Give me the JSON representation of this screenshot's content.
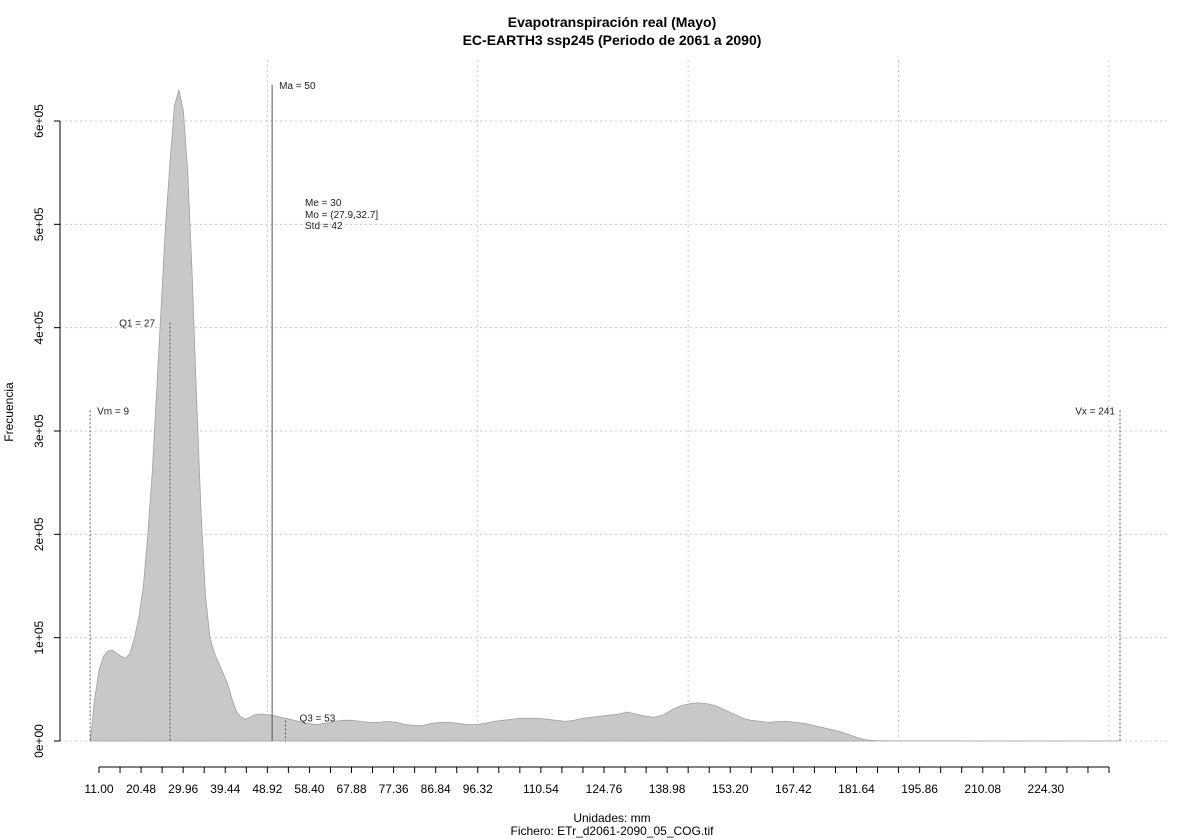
{
  "chart_data": {
    "type": "area",
    "title": "Evapotranspiración real (Mayo)",
    "subtitle": "EC-EARTH3 ssp245 (Periodo de 2061 a 2090)",
    "xlabel": "Unidades: mm",
    "caption": "Fichero: ETr_d2061-2090_05_COG.tif",
    "ylabel": "Frecuencia",
    "xlim": [
      11.0,
      238.52
    ],
    "ylim": [
      0,
      600000
    ],
    "grid": true,
    "fill_color": "#c8c8c8",
    "line_color": "#a0a0a0",
    "x_tick_values": [
      11.0,
      15.74,
      20.48,
      25.22,
      29.96,
      34.7,
      39.44,
      44.18,
      48.92,
      53.66,
      58.4,
      63.14,
      67.88,
      72.62,
      77.36,
      82.1,
      86.84,
      91.58,
      96.32,
      101.06,
      105.8,
      110.54,
      115.28,
      120.02,
      124.76,
      129.5,
      134.24,
      138.98,
      143.72,
      148.46,
      153.2,
      157.94,
      162.68,
      167.42,
      172.16,
      176.9,
      181.64,
      186.38,
      191.12,
      195.86,
      200.6,
      205.34,
      210.08,
      214.82,
      219.56,
      224.3,
      229.04,
      233.78,
      238.52
    ],
    "x_tick_labels": [
      "11.00",
      "20.48",
      "29.96",
      "39.44",
      "48.92",
      "58.40",
      "67.88",
      "77.36",
      "86.84",
      "96.32",
      "110.54",
      "124.76",
      "138.98",
      "153.20",
      "167.42",
      "181.64",
      "195.86",
      "210.08",
      "224.30"
    ],
    "x_tick_label_values": [
      11.0,
      20.48,
      29.96,
      39.44,
      48.92,
      58.4,
      67.88,
      77.36,
      86.84,
      96.32,
      110.54,
      124.76,
      138.98,
      153.2,
      167.42,
      181.64,
      195.86,
      210.08,
      224.3
    ],
    "x_grid_values": [
      48.92,
      96.32,
      143.72,
      191.12,
      238.52
    ],
    "y_tick_values": [
      0,
      100000,
      200000,
      300000,
      400000,
      500000,
      600000
    ],
    "y_tick_labels": [
      "0e+00",
      "1e+05",
      "2e+05",
      "3e+05",
      "4e+05",
      "5e+05",
      "6e+05"
    ],
    "series": [
      {
        "x": [
          9,
          9.5,
          10,
          11,
          12,
          13,
          14,
          15,
          16,
          17,
          18,
          19,
          20,
          21,
          22,
          23,
          24,
          25,
          26,
          27,
          28,
          29,
          30,
          31,
          32,
          33,
          34,
          35,
          36,
          37,
          38,
          39,
          40,
          41,
          42,
          43,
          44,
          45,
          46,
          47,
          48,
          50,
          52,
          54,
          56,
          58,
          60,
          62,
          64,
          66,
          68,
          70,
          72,
          74,
          76,
          78,
          80,
          82,
          84,
          86,
          88,
          90,
          92,
          94,
          96,
          98,
          100,
          102,
          104,
          106,
          108,
          110,
          112,
          114,
          116,
          118,
          120,
          122,
          124,
          126,
          128,
          130,
          132,
          134,
          136,
          138,
          140,
          142,
          144,
          146,
          148,
          150,
          152,
          154,
          156,
          158,
          160,
          162,
          164,
          166,
          168,
          170,
          172,
          174,
          176,
          178,
          180,
          182,
          184,
          186,
          190,
          200,
          210,
          220,
          230,
          240,
          241
        ],
        "y": [
          0,
          18000,
          40000,
          68000,
          82000,
          87000,
          88000,
          85000,
          82000,
          80000,
          85000,
          100000,
          120000,
          150000,
          200000,
          260000,
          340000,
          420000,
          500000,
          560000,
          615000,
          630000,
          610000,
          550000,
          450000,
          330000,
          220000,
          140000,
          100000,
          85000,
          75000,
          65000,
          55000,
          40000,
          28000,
          23000,
          21000,
          23000,
          25000,
          26000,
          26000,
          25000,
          23000,
          21000,
          19000,
          17000,
          16000,
          17000,
          19000,
          20000,
          20000,
          19000,
          18000,
          18000,
          19000,
          18000,
          16000,
          15000,
          15000,
          17000,
          18000,
          18000,
          17000,
          16000,
          16000,
          17000,
          19000,
          20000,
          21000,
          22000,
          22000,
          22000,
          21000,
          20000,
          19000,
          20000,
          22000,
          23000,
          24000,
          25000,
          26000,
          28000,
          26000,
          24000,
          23000,
          25000,
          30000,
          34000,
          36000,
          37000,
          36000,
          34000,
          30000,
          26000,
          22000,
          20000,
          19000,
          18000,
          19000,
          19000,
          18000,
          17000,
          15000,
          13000,
          11000,
          9000,
          6000,
          3000,
          1000,
          300,
          100,
          50,
          30,
          20,
          10,
          0,
          0
        ]
      }
    ],
    "stat_markers": [
      {
        "id": "vm",
        "value": 9,
        "label": "Vm = 9",
        "line_top": 320000,
        "style": "dotted"
      },
      {
        "id": "q1",
        "value": 27,
        "label": "Q1 = 27",
        "line_top": 405000,
        "style": "dotted"
      },
      {
        "id": "ma",
        "value": 50,
        "label": "Ma = 50",
        "line_top": 635000,
        "style": "solid"
      },
      {
        "id": "q3",
        "value": 53,
        "label": "Q3 = 53",
        "line_top": 20000,
        "style": "dotted"
      },
      {
        "id": "vx",
        "value": 241,
        "label": "Vx = 241",
        "line_top": 320000,
        "style": "dotted"
      }
    ],
    "stat_block": [
      "Me = 30",
      "Mo = (27.9,32.7]",
      "Std = 42"
    ]
  }
}
